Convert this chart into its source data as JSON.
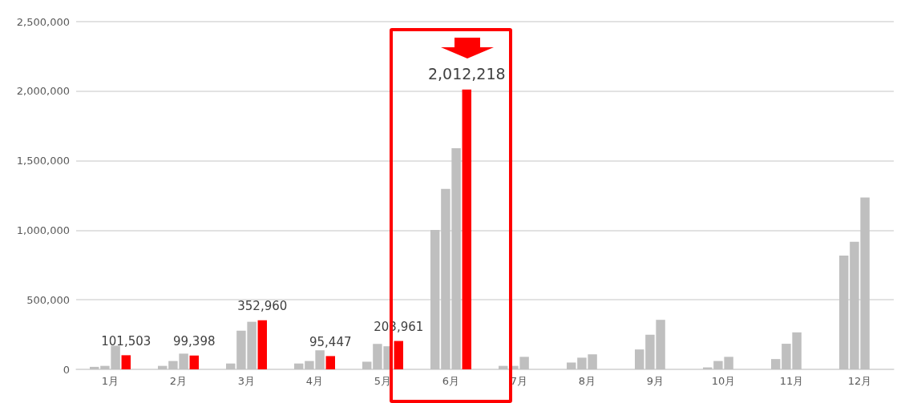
{
  "chart_data": {
    "type": "bar",
    "categories": [
      "1月",
      "2月",
      "3月",
      "4月",
      "5月",
      "6月",
      "7月",
      "8月",
      "9月",
      "10月",
      "11月",
      "12月"
    ],
    "series": [
      {
        "color": "#bfbfbf",
        "values": [
          18000,
          25000,
          42000,
          42000,
          55000,
          1003000,
          25000,
          49000,
          143000,
          14000,
          74000,
          818000
        ]
      },
      {
        "color": "#bfbfbf",
        "values": [
          25000,
          60000,
          278000,
          60000,
          183000,
          1297000,
          25000,
          84000,
          249000,
          60000,
          184000,
          918000
        ]
      },
      {
        "color": "#bfbfbf",
        "values": [
          170000,
          113000,
          342000,
          137000,
          166000,
          1590000,
          90000,
          108000,
          356000,
          90000,
          266000,
          1236000
        ]
      },
      {
        "color": "#ff0000",
        "values": [
          101503,
          99398,
          352960,
          95447,
          203961,
          2012218,
          null,
          null,
          null,
          null,
          null,
          null
        ],
        "value_labels": [
          "101,503",
          "99,398",
          "352,960",
          "95,447",
          "203,961",
          "2,012,218",
          null,
          null,
          null,
          null,
          null,
          null
        ]
      }
    ],
    "ylim": [
      0,
      2500000
    ],
    "yticks": [
      {
        "value": 0,
        "label": "0"
      },
      {
        "value": 500000,
        "label": "500,000"
      },
      {
        "value": 1000000,
        "label": "1,000,000"
      },
      {
        "value": 1500000,
        "label": "1,500,000"
      },
      {
        "value": 2000000,
        "label": "2,000,000"
      },
      {
        "value": 2500000,
        "label": "2,500,000"
      }
    ],
    "grid": "y"
  }
}
